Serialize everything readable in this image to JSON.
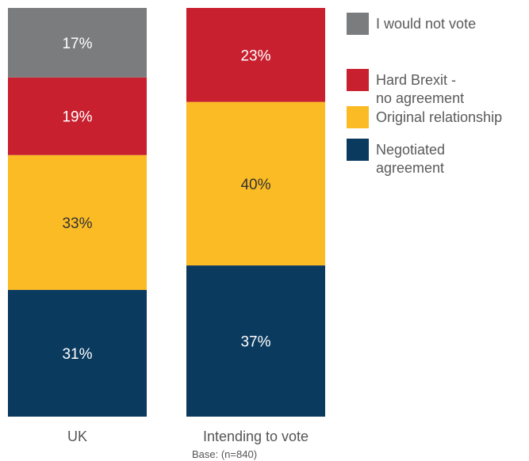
{
  "chart_data": {
    "type": "bar",
    "stacked": true,
    "orientation": "vertical",
    "categories": [
      "UK",
      "Intending to vote"
    ],
    "series": [
      {
        "name": "Negotiated agreement",
        "legend_lines": [
          "Negotiated",
          "agreement"
        ],
        "color": "#0b3a5f",
        "label_color": "#ffffff",
        "values": [
          31,
          37
        ]
      },
      {
        "name": "Original relationship",
        "legend_lines": [
          "Original relationship"
        ],
        "color": "#fbbb25",
        "label_color": "#333333",
        "values": [
          33,
          40
        ]
      },
      {
        "name": "Hard Brexit - no agreement",
        "legend_lines": [
          "Hard Brexit -",
          "no agreement"
        ],
        "color": "#c8202f",
        "label_color": "#ffffff",
        "values": [
          19,
          23
        ]
      },
      {
        "name": "I would not vote",
        "legend_lines": [
          "I would not vote"
        ],
        "color": "#7b7c7e",
        "label_color": "#ffffff",
        "values": [
          17,
          0
        ]
      }
    ],
    "value_suffix": "%",
    "ylim": [
      0,
      100
    ],
    "legend_position": "right",
    "legend_order": [
      3,
      2,
      1,
      0
    ],
    "notes": [
      "",
      "Base: (n=840)"
    ],
    "grid": false
  }
}
